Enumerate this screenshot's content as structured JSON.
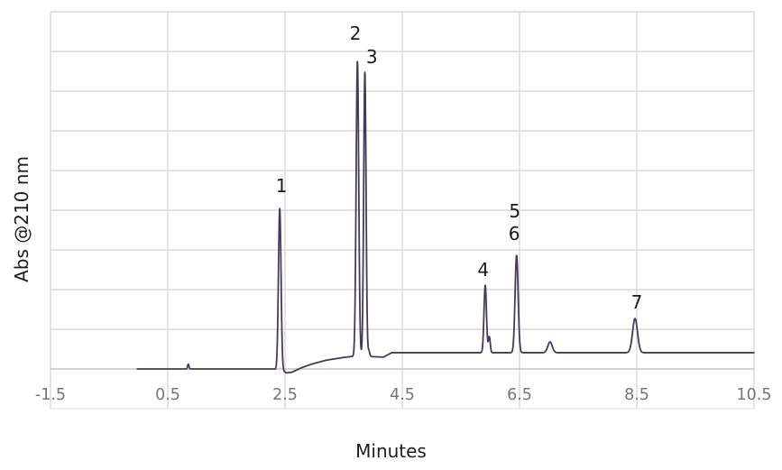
{
  "chart_data": {
    "type": "line",
    "title": "",
    "xlabel": "Minutes",
    "ylabel": "Abs @210 nm",
    "xlim": [
      -1.5,
      10.5
    ],
    "ylim": [
      0,
      9
    ],
    "grid": true,
    "legend": "none",
    "x_ticks": [
      -1.5,
      0.5,
      2.5,
      4.5,
      6.5,
      8.5,
      10.5
    ],
    "x_tick_labels": [
      "-1.5",
      "0.5",
      "2.5",
      "4.5",
      "6.5",
      "8.5",
      "10.5"
    ],
    "y_tick_labels": [],
    "y_gridline_step": 1,
    "colors": {
      "trace": "#443a5e",
      "grid": "#d9d9d9",
      "grid_bottom": "#c3c3c3",
      "band_bottom_line": "#e6e6e6",
      "tick_label": "#757575",
      "annotation": "#1a1a1a"
    },
    "series": [
      {
        "name": "Abs @210 nm trace",
        "x_start": -0.02,
        "x_end": 10.5,
        "sample_dt": 0.003,
        "baseline_anchors": [
          [
            -0.02,
            0.0
          ],
          [
            2.3,
            0.0
          ],
          [
            2.46,
            -0.04
          ],
          [
            2.52,
            -0.1
          ],
          [
            2.62,
            -0.08
          ],
          [
            2.78,
            0.03
          ],
          [
            2.95,
            0.12
          ],
          [
            3.2,
            0.22
          ],
          [
            3.5,
            0.29
          ],
          [
            3.72,
            0.33
          ],
          [
            3.88,
            0.36
          ],
          [
            3.94,
            0.34
          ],
          [
            3.98,
            0.31
          ],
          [
            4.18,
            0.3
          ],
          [
            4.32,
            0.41
          ],
          [
            10.5,
            0.41
          ]
        ],
        "peaks": [
          {
            "t": 0.85,
            "h": 0.12,
            "sigma": 0.012,
            "label": ""
          },
          {
            "t": 2.41,
            "h": 4.07,
            "sigma": 0.022,
            "label": "1"
          },
          {
            "t": 3.735,
            "h": 7.42,
            "sigma": 0.022,
            "label": "2"
          },
          {
            "t": 3.862,
            "h": 7.12,
            "sigma": 0.02,
            "label": "3"
          },
          {
            "t": 3.93,
            "h": 0.12,
            "sigma": 0.012,
            "label": ""
          },
          {
            "t": 5.915,
            "h": 1.7,
            "sigma": 0.021,
            "label": "4"
          },
          {
            "t": 5.985,
            "h": 0.4,
            "sigma": 0.016,
            "label": ""
          },
          {
            "t": 6.45,
            "h": 2.45,
            "sigma": 0.026,
            "label": "5,6"
          },
          {
            "t": 7.02,
            "h": 0.27,
            "sigma": 0.038,
            "label": ""
          },
          {
            "t": 8.47,
            "h": 0.86,
            "sigma": 0.042,
            "label": "7"
          }
        ]
      }
    ],
    "peak_annotations": [
      {
        "label": "1",
        "t": 2.44,
        "u": 4.61
      },
      {
        "label": "2",
        "t": 3.7,
        "u": 8.45
      },
      {
        "label": "3",
        "t": 3.98,
        "u": 7.86
      },
      {
        "label": "4",
        "t": 5.88,
        "u": 2.5
      },
      {
        "label": "5",
        "t": 6.42,
        "u": 3.98
      },
      {
        "label": "6",
        "t": 6.41,
        "u": 3.41
      },
      {
        "label": "7",
        "t": 8.5,
        "u": 1.68
      }
    ]
  }
}
